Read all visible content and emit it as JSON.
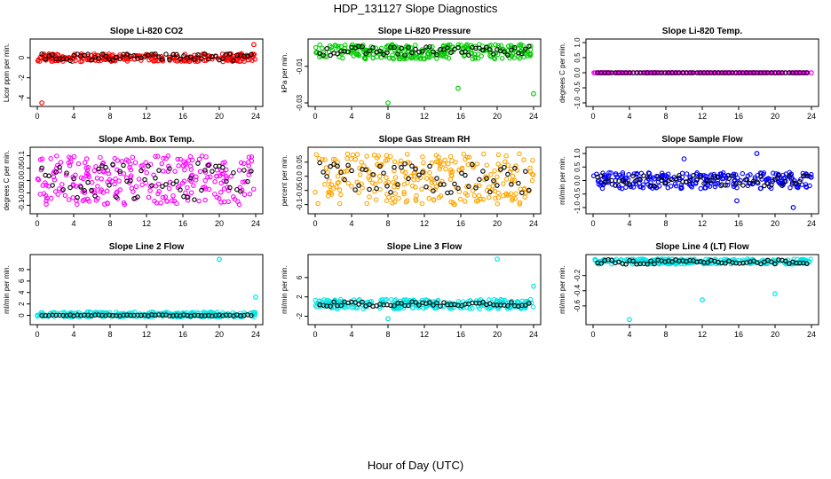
{
  "title": "HDP_131127  Slope Diagnostics",
  "xlabel": "Hour of Day (UTC)",
  "chart_data": [
    {
      "type": "scatter",
      "title": "Slope Li-820 CO2",
      "ylabel": "Licor ppm per min.",
      "xlim": [
        0,
        24
      ],
      "ylim": [
        -4.5,
        1.5
      ],
      "yticks": [
        -4,
        -2,
        0
      ],
      "xticks": [
        0,
        4,
        8,
        12,
        16,
        20,
        24
      ],
      "color": "#ff0000",
      "band": [
        -0.4,
        0.4
      ],
      "outliers": [
        [
          0.5,
          -4.5
        ],
        [
          23.8,
          1.3
        ]
      ],
      "black_band": [
        -0.3,
        0.4
      ]
    },
    {
      "type": "scatter",
      "title": "Slope Li-820 Pressure",
      "ylabel": "kPa per min.",
      "xlim": [
        0,
        24
      ],
      "ylim": [
        -0.03,
        0.003
      ],
      "yticks": [
        -0.03,
        -0.01
      ],
      "xticks": [
        0,
        4,
        8,
        12,
        16,
        20,
        24
      ],
      "color": "#00cc00",
      "band": [
        -0.006,
        0.002
      ],
      "outliers": [
        [
          8,
          -0.03
        ],
        [
          15.7,
          -0.022
        ],
        [
          24,
          -0.025
        ],
        [
          4,
          0.001
        ]
      ],
      "black_band": [
        -0.004,
        0.001
      ]
    },
    {
      "type": "scatter",
      "title": "Slope Li-820 Temp.",
      "ylabel": "degrees C per min.",
      "xlim": [
        0,
        24
      ],
      "ylim": [
        -1,
        1
      ],
      "yticks": [
        -1.0,
        -0.5,
        0.0,
        0.5,
        1.0
      ],
      "xticks": [
        0,
        4,
        8,
        12,
        16,
        20,
        24
      ],
      "color": "#ff00ff",
      "band": [
        0,
        0
      ],
      "outliers": [],
      "black_band": [
        0,
        0
      ]
    },
    {
      "type": "scatter",
      "title": "Slope Amb. Box Temp.",
      "ylabel": "degrees C per min.",
      "xlim": [
        0,
        24
      ],
      "ylim": [
        -0.12,
        0.12
      ],
      "yticks": [
        -0.1,
        -0.05,
        0.0,
        0.05,
        0.1
      ],
      "xticks": [
        0,
        4,
        8,
        12,
        16,
        20,
        24
      ],
      "color": "#ff00ff",
      "band": [
        -0.1,
        0.1
      ],
      "outliers": [],
      "black_band": [
        -0.08,
        0.07
      ]
    },
    {
      "type": "scatter",
      "title": "Slope Gas Stream RH",
      "ylabel": "percent per min.",
      "xlim": [
        0,
        24
      ],
      "ylim": [
        -0.12,
        0.09
      ],
      "yticks": [
        -0.1,
        -0.05,
        0.0,
        0.05
      ],
      "xticks": [
        0,
        4,
        8,
        12,
        16,
        20,
        24
      ],
      "color": "#ffa500",
      "band": [
        -0.1,
        0.08
      ],
      "outliers": [],
      "black_band": [
        -0.06,
        0.05
      ]
    },
    {
      "type": "scatter",
      "title": "Slope Sample Flow",
      "ylabel": "ml/min per min.",
      "xlim": [
        0,
        24
      ],
      "ylim": [
        -1.1,
        1.1
      ],
      "yticks": [
        -1.0,
        -0.5,
        0.0,
        0.5,
        1.0
      ],
      "xticks": [
        0,
        4,
        8,
        12,
        16,
        20,
        24
      ],
      "color": "#0000ff",
      "band": [
        -0.3,
        0.3
      ],
      "outliers": [
        [
          18,
          1.0
        ],
        [
          22,
          -1.0
        ],
        [
          15.8,
          -0.75
        ],
        [
          10,
          0.8
        ]
      ],
      "black_band": [
        -0.2,
        0.2
      ]
    },
    {
      "type": "scatter",
      "title": "Slope Line 2 Flow",
      "ylabel": "ml/min per min.",
      "xlim": [
        0,
        24
      ],
      "ylim": [
        -1,
        10
      ],
      "yticks": [
        0,
        2,
        4,
        6,
        8
      ],
      "xticks": [
        0,
        4,
        8,
        12,
        16,
        20,
        24
      ],
      "color": "#00e5e5",
      "band": [
        -0.3,
        0.6
      ],
      "outliers": [
        [
          20,
          9.8
        ],
        [
          24,
          3.2
        ]
      ],
      "black_band": [
        -0.1,
        0.1
      ]
    },
    {
      "type": "scatter",
      "title": "Slope Line 3 Flow",
      "ylabel": "ml/min per min.",
      "xlim": [
        0,
        24
      ],
      "ylim": [
        -3,
        10
      ],
      "yticks": [
        -2,
        2,
        6
      ],
      "xticks": [
        0,
        4,
        8,
        12,
        16,
        20,
        24
      ],
      "color": "#00e5e5",
      "band": [
        -0.5,
        1.5
      ],
      "outliers": [
        [
          20,
          9.8
        ],
        [
          24,
          4.2
        ],
        [
          8,
          -2.5
        ]
      ],
      "black_band": [
        0,
        1
      ]
    },
    {
      "type": "scatter",
      "title": "Slope Line 4 (LT) Flow",
      "ylabel": "ml/min per min.",
      "xlim": [
        0,
        24
      ],
      "ylim": [
        -0.8,
        0.03
      ],
      "yticks": [
        -0.6,
        -0.4,
        -0.2
      ],
      "xticks": [
        0,
        4,
        8,
        12,
        16,
        20,
        24
      ],
      "color": "#00e5e5",
      "band": [
        -0.05,
        0.02
      ],
      "outliers": [
        [
          4,
          -0.78
        ],
        [
          12,
          -0.52
        ],
        [
          20,
          -0.44
        ]
      ],
      "black_band": [
        -0.05,
        0.01
      ]
    }
  ]
}
